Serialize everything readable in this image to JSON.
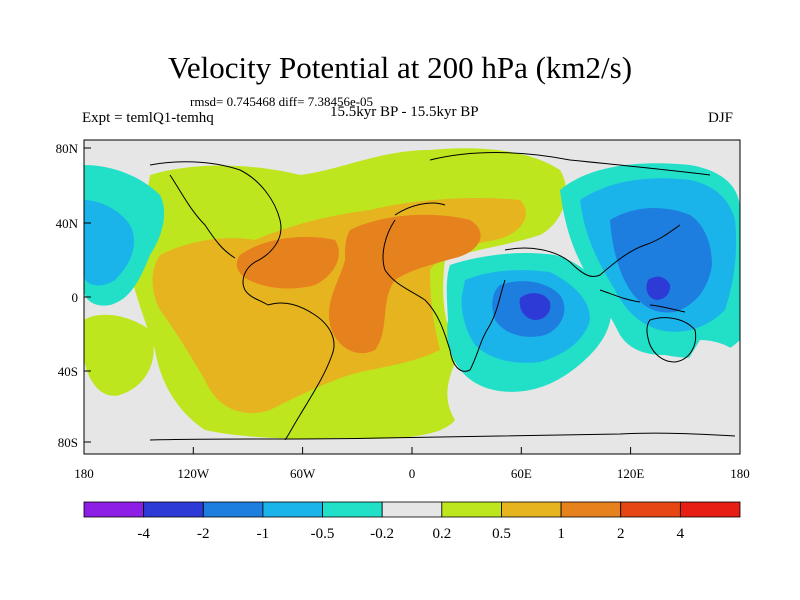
{
  "title": "Velocity Potential at 200 hPa (km2/s)",
  "stats": "rmsd= 0.745468 diff= 7.38456e-05",
  "expt": "Expt = temlQ1-temhq",
  "period": "15.5kyr BP - 15.5kyr BP",
  "season": "DJF",
  "lat_ticks": [
    "80N",
    "40N",
    "0",
    "40S",
    "80S"
  ],
  "lon_ticks": [
    "180",
    "120W",
    "60W",
    "0",
    "60E",
    "120E",
    "180"
  ],
  "colorbar": {
    "labels": [
      "-4",
      "-2",
      "-1",
      "-0.5",
      "-0.2",
      "0.2",
      "0.5",
      "1",
      "2",
      "4"
    ],
    "colors": [
      "#8c1ee6",
      "#2d3ad6",
      "#1e7ee0",
      "#1ab4ea",
      "#22e0c8",
      "#e6e6e6",
      "#bee61e",
      "#e6b41e",
      "#e6821e",
      "#e64614",
      "#e61e14"
    ]
  },
  "field_colors": {
    "neg3": "#2d3ad6",
    "neg2": "#1e7ee0",
    "neg1": "#1ab4ea",
    "neg0": "#22e0c8",
    "zero": "#e6e6e6",
    "pos0": "#bee61e",
    "pos1": "#e6b41e",
    "pos2": "#e6821e"
  }
}
